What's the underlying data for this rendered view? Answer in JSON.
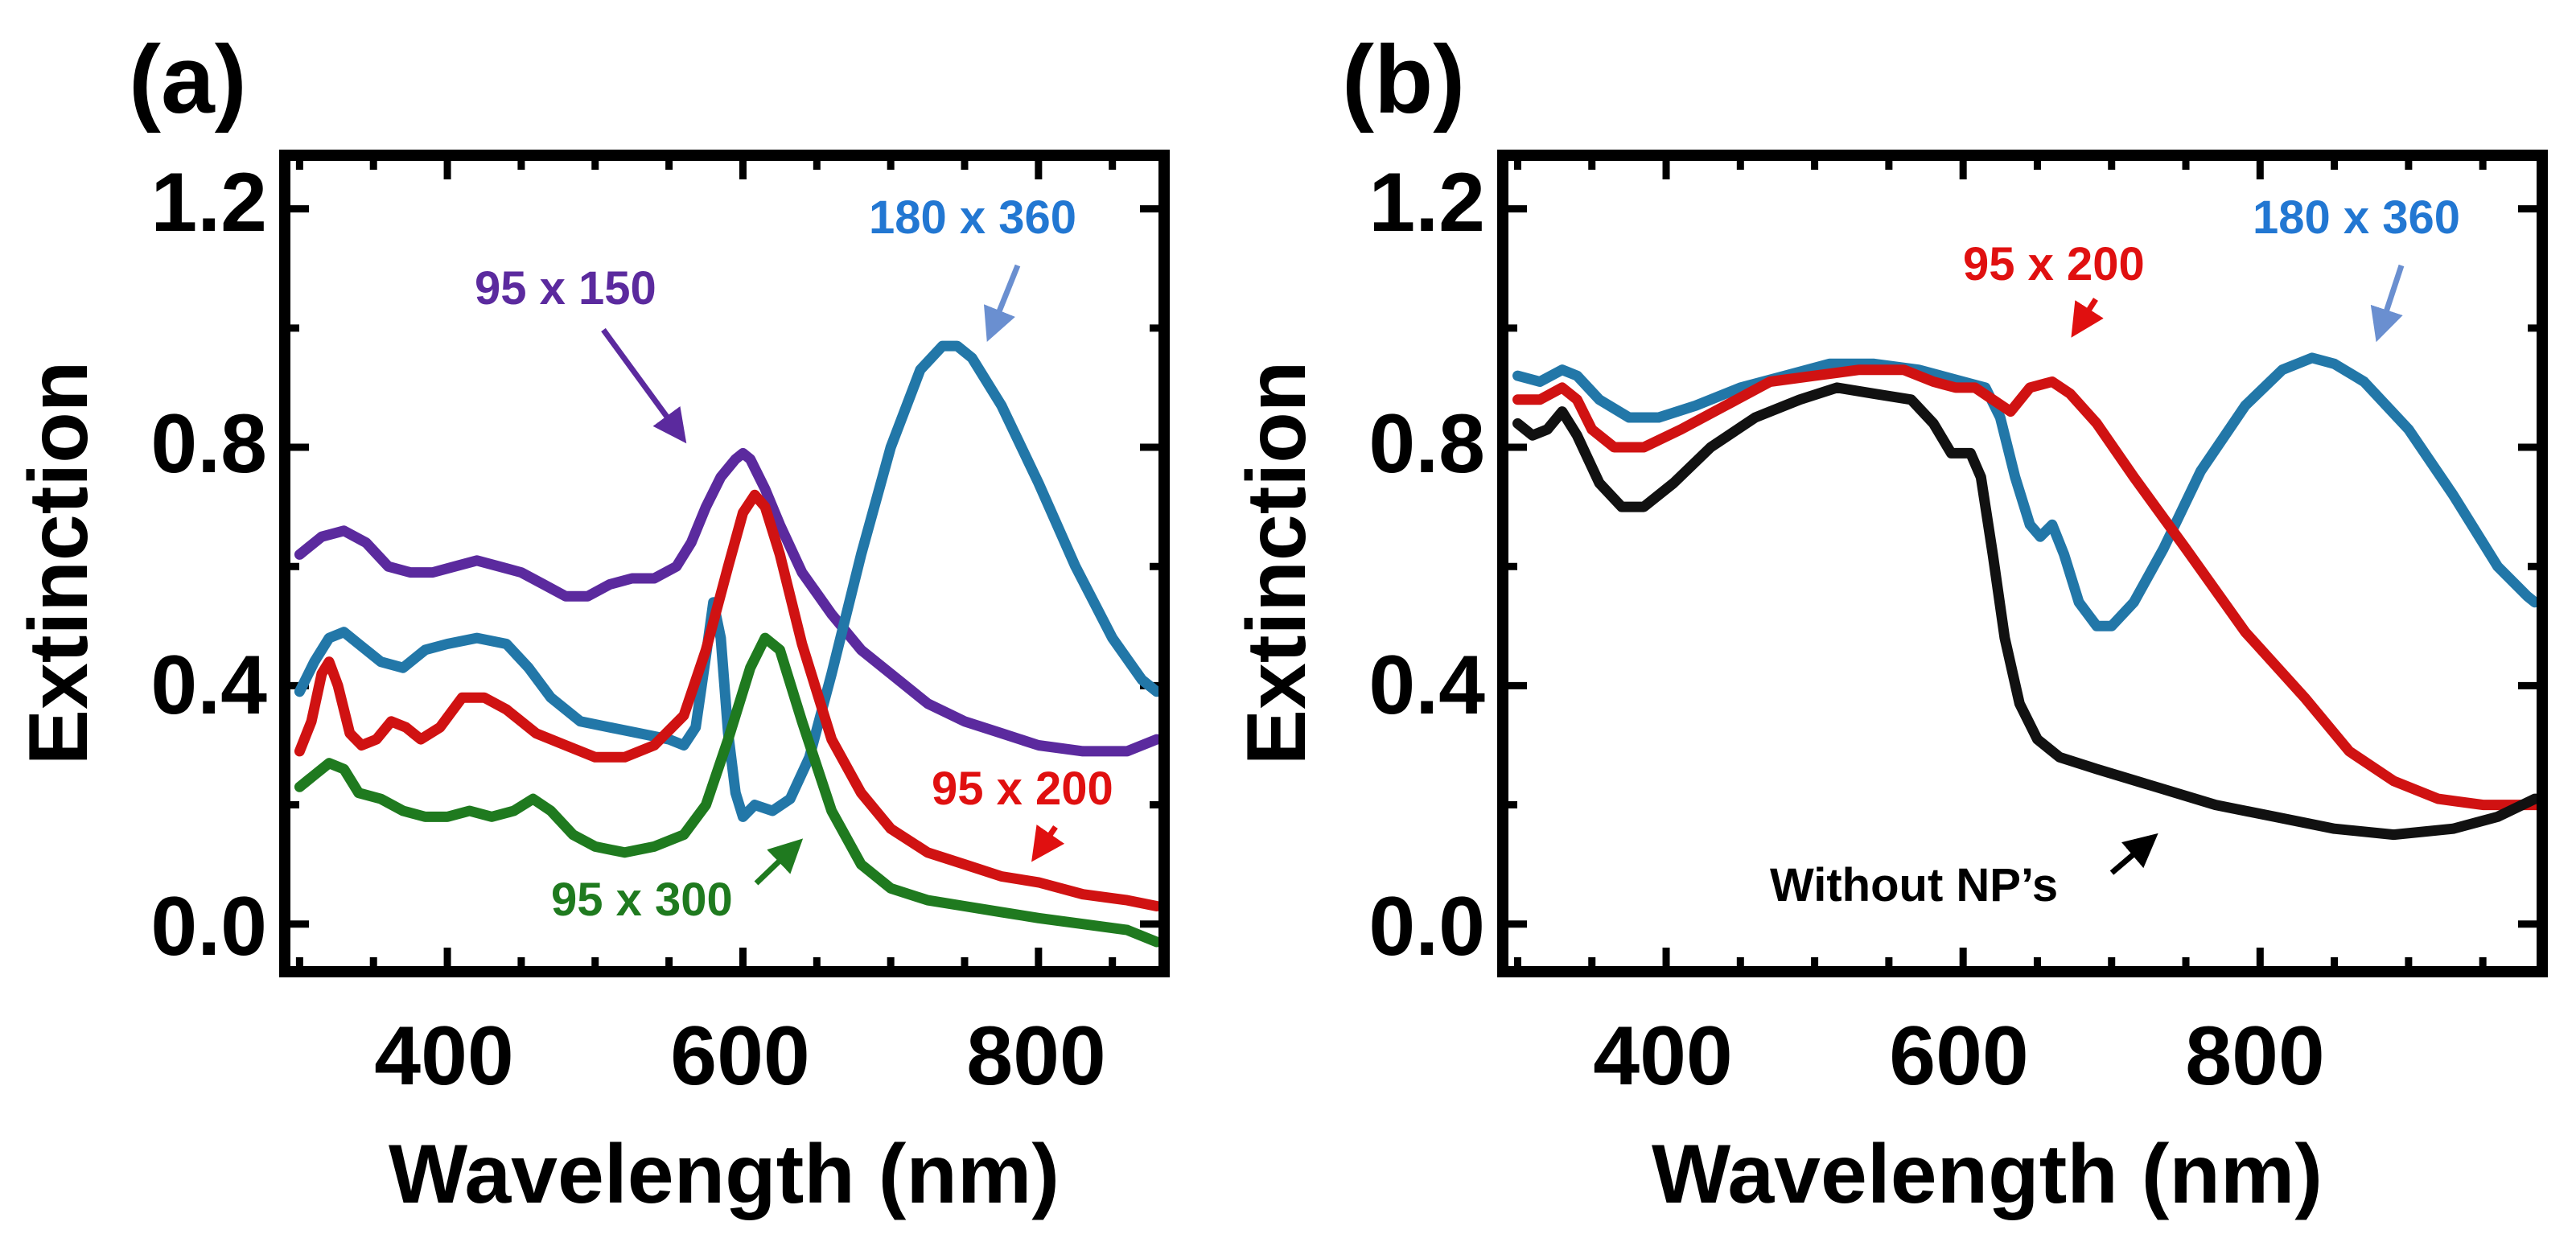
{
  "chart_data": [
    {
      "type": "line",
      "panel_label": "(a)",
      "xlabel": "Wavelength (nm)",
      "ylabel": "Extinction",
      "xlim": [
        290,
        885
      ],
      "ylim": [
        -0.08,
        1.29
      ],
      "xticks": [
        400,
        600,
        800
      ],
      "xtick_labels": [
        "400",
        "600",
        "800"
      ],
      "yticks": [
        0.0,
        0.4,
        0.8,
        1.2
      ],
      "ytick_labels": [
        "0.0",
        "0.4",
        "0.8",
        "1.2"
      ],
      "series": [
        {
          "name": "95 x 150",
          "color": "#5b2a9e",
          "points": [
            [
              300,
              0.62
            ],
            [
              315,
              0.65
            ],
            [
              330,
              0.66
            ],
            [
              345,
              0.64
            ],
            [
              360,
              0.6
            ],
            [
              375,
              0.59
            ],
            [
              390,
              0.59
            ],
            [
              405,
              0.6
            ],
            [
              420,
              0.61
            ],
            [
              435,
              0.6
            ],
            [
              450,
              0.59
            ],
            [
              465,
              0.57
            ],
            [
              480,
              0.55
            ],
            [
              495,
              0.55
            ],
            [
              510,
              0.57
            ],
            [
              525,
              0.58
            ],
            [
              540,
              0.58
            ],
            [
              555,
              0.6
            ],
            [
              565,
              0.64
            ],
            [
              575,
              0.7
            ],
            [
              585,
              0.75
            ],
            [
              595,
              0.78
            ],
            [
              600,
              0.79
            ],
            [
              605,
              0.78
            ],
            [
              615,
              0.73
            ],
            [
              625,
              0.67
            ],
            [
              640,
              0.59
            ],
            [
              660,
              0.52
            ],
            [
              680,
              0.46
            ],
            [
              700,
              0.42
            ],
            [
              725,
              0.37
            ],
            [
              750,
              0.34
            ],
            [
              775,
              0.32
            ],
            [
              800,
              0.3
            ],
            [
              830,
              0.29
            ],
            [
              860,
              0.29
            ],
            [
              880,
              0.31
            ]
          ]
        },
        {
          "name": "180 x 360",
          "color": "#2277a8",
          "points": [
            [
              300,
              0.39
            ],
            [
              310,
              0.44
            ],
            [
              320,
              0.48
            ],
            [
              330,
              0.49
            ],
            [
              340,
              0.47
            ],
            [
              355,
              0.44
            ],
            [
              370,
              0.43
            ],
            [
              385,
              0.46
            ],
            [
              400,
              0.47
            ],
            [
              420,
              0.48
            ],
            [
              440,
              0.47
            ],
            [
              455,
              0.43
            ],
            [
              470,
              0.38
            ],
            [
              490,
              0.34
            ],
            [
              510,
              0.33
            ],
            [
              530,
              0.32
            ],
            [
              550,
              0.31
            ],
            [
              560,
              0.3
            ],
            [
              568,
              0.33
            ],
            [
              575,
              0.45
            ],
            [
              580,
              0.54
            ],
            [
              585,
              0.48
            ],
            [
              590,
              0.32
            ],
            [
              595,
              0.22
            ],
            [
              600,
              0.18
            ],
            [
              608,
              0.2
            ],
            [
              620,
              0.19
            ],
            [
              632,
              0.21
            ],
            [
              645,
              0.28
            ],
            [
              660,
              0.42
            ],
            [
              680,
              0.62
            ],
            [
              700,
              0.8
            ],
            [
              720,
              0.93
            ],
            [
              735,
              0.97
            ],
            [
              745,
              0.97
            ],
            [
              755,
              0.95
            ],
            [
              775,
              0.87
            ],
            [
              800,
              0.74
            ],
            [
              825,
              0.6
            ],
            [
              850,
              0.48
            ],
            [
              870,
              0.41
            ],
            [
              880,
              0.39
            ]
          ]
        },
        {
          "name": "95 x 200",
          "color": "#d01212",
          "points": [
            [
              300,
              0.29
            ],
            [
              308,
              0.34
            ],
            [
              315,
              0.42
            ],
            [
              320,
              0.44
            ],
            [
              326,
              0.4
            ],
            [
              334,
              0.32
            ],
            [
              342,
              0.3
            ],
            [
              352,
              0.31
            ],
            [
              362,
              0.34
            ],
            [
              372,
              0.33
            ],
            [
              382,
              0.31
            ],
            [
              395,
              0.33
            ],
            [
              410,
              0.38
            ],
            [
              425,
              0.38
            ],
            [
              440,
              0.36
            ],
            [
              460,
              0.32
            ],
            [
              480,
              0.3
            ],
            [
              500,
              0.28
            ],
            [
              520,
              0.28
            ],
            [
              540,
              0.3
            ],
            [
              560,
              0.35
            ],
            [
              575,
              0.46
            ],
            [
              590,
              0.6
            ],
            [
              600,
              0.69
            ],
            [
              608,
              0.72
            ],
            [
              615,
              0.7
            ],
            [
              625,
              0.62
            ],
            [
              640,
              0.47
            ],
            [
              660,
              0.31
            ],
            [
              680,
              0.22
            ],
            [
              700,
              0.16
            ],
            [
              725,
              0.12
            ],
            [
              750,
              0.1
            ],
            [
              775,
              0.08
            ],
            [
              800,
              0.07
            ],
            [
              830,
              0.05
            ],
            [
              860,
              0.04
            ],
            [
              880,
              0.03
            ]
          ]
        },
        {
          "name": "95 x 300",
          "color": "#1f7a1f",
          "points": [
            [
              300,
              0.23
            ],
            [
              310,
              0.25
            ],
            [
              320,
              0.27
            ],
            [
              330,
              0.26
            ],
            [
              340,
              0.22
            ],
            [
              355,
              0.21
            ],
            [
              370,
              0.19
            ],
            [
              385,
              0.18
            ],
            [
              400,
              0.18
            ],
            [
              415,
              0.19
            ],
            [
              430,
              0.18
            ],
            [
              445,
              0.19
            ],
            [
              458,
              0.21
            ],
            [
              470,
              0.19
            ],
            [
              485,
              0.15
            ],
            [
              500,
              0.13
            ],
            [
              520,
              0.12
            ],
            [
              540,
              0.13
            ],
            [
              560,
              0.15
            ],
            [
              575,
              0.2
            ],
            [
              590,
              0.31
            ],
            [
              605,
              0.43
            ],
            [
              615,
              0.48
            ],
            [
              625,
              0.46
            ],
            [
              640,
              0.34
            ],
            [
              660,
              0.19
            ],
            [
              680,
              0.1
            ],
            [
              700,
              0.06
            ],
            [
              725,
              0.04
            ],
            [
              750,
              0.03
            ],
            [
              775,
              0.02
            ],
            [
              800,
              0.01
            ],
            [
              830,
              0.0
            ],
            [
              860,
              -0.01
            ],
            [
              880,
              -0.03
            ]
          ]
        }
      ],
      "annotations": [
        {
          "text": "95 x 150",
          "color": "#5b2a9e"
        },
        {
          "text": "180 x 360",
          "color": "#2277d2"
        },
        {
          "text": "95 x 200",
          "color": "#e01010"
        },
        {
          "text": "95 x 300",
          "color": "#1f7a1f"
        }
      ]
    },
    {
      "type": "line",
      "panel_label": "(b)",
      "xlabel": "Wavelength (nm)",
      "ylabel": "Extinction",
      "xlim": [
        290,
        990
      ],
      "ylim": [
        -0.08,
        1.29
      ],
      "xticks": [
        400,
        600,
        800
      ],
      "xtick_labels": [
        "400",
        "600",
        "800"
      ],
      "yticks": [
        0.0,
        0.4,
        0.8,
        1.2
      ],
      "ytick_labels": [
        "0.0",
        "0.4",
        "0.8",
        "1.2"
      ],
      "series": [
        {
          "name": "180 x 360",
          "color": "#2277a8",
          "points": [
            [
              300,
              0.92
            ],
            [
              315,
              0.91
            ],
            [
              330,
              0.93
            ],
            [
              340,
              0.92
            ],
            [
              355,
              0.88
            ],
            [
              375,
              0.85
            ],
            [
              395,
              0.85
            ],
            [
              420,
              0.87
            ],
            [
              450,
              0.9
            ],
            [
              480,
              0.92
            ],
            [
              510,
              0.94
            ],
            [
              540,
              0.94
            ],
            [
              570,
              0.93
            ],
            [
              600,
              0.91
            ],
            [
              615,
              0.9
            ],
            [
              625,
              0.85
            ],
            [
              635,
              0.75
            ],
            [
              645,
              0.67
            ],
            [
              652,
              0.65
            ],
            [
              660,
              0.67
            ],
            [
              668,
              0.62
            ],
            [
              678,
              0.54
            ],
            [
              690,
              0.5
            ],
            [
              700,
              0.5
            ],
            [
              715,
              0.54
            ],
            [
              735,
              0.63
            ],
            [
              760,
              0.76
            ],
            [
              790,
              0.87
            ],
            [
              815,
              0.93
            ],
            [
              835,
              0.95
            ],
            [
              850,
              0.94
            ],
            [
              870,
              0.91
            ],
            [
              900,
              0.83
            ],
            [
              930,
              0.72
            ],
            [
              960,
              0.6
            ],
            [
              980,
              0.55
            ],
            [
              985,
              0.54
            ]
          ]
        },
        {
          "name": "95 x 200",
          "color": "#d01212",
          "points": [
            [
              300,
              0.88
            ],
            [
              315,
              0.88
            ],
            [
              330,
              0.9
            ],
            [
              340,
              0.88
            ],
            [
              350,
              0.83
            ],
            [
              365,
              0.8
            ],
            [
              385,
              0.8
            ],
            [
              410,
              0.83
            ],
            [
              440,
              0.87
            ],
            [
              470,
              0.91
            ],
            [
              500,
              0.92
            ],
            [
              530,
              0.93
            ],
            [
              560,
              0.93
            ],
            [
              580,
              0.91
            ],
            [
              595,
              0.9
            ],
            [
              608,
              0.9
            ],
            [
              620,
              0.88
            ],
            [
              632,
              0.86
            ],
            [
              645,
              0.9
            ],
            [
              660,
              0.91
            ],
            [
              672,
              0.89
            ],
            [
              690,
              0.84
            ],
            [
              715,
              0.75
            ],
            [
              750,
              0.63
            ],
            [
              790,
              0.49
            ],
            [
              830,
              0.38
            ],
            [
              860,
              0.29
            ],
            [
              890,
              0.24
            ],
            [
              920,
              0.21
            ],
            [
              950,
              0.2
            ],
            [
              980,
              0.2
            ],
            [
              990,
              0.2
            ]
          ]
        },
        {
          "name": "Without NP's",
          "color": "#111111",
          "points": [
            [
              300,
              0.84
            ],
            [
              310,
              0.82
            ],
            [
              320,
              0.83
            ],
            [
              330,
              0.86
            ],
            [
              340,
              0.82
            ],
            [
              355,
              0.74
            ],
            [
              370,
              0.7
            ],
            [
              385,
              0.7
            ],
            [
              405,
              0.74
            ],
            [
              430,
              0.8
            ],
            [
              460,
              0.85
            ],
            [
              490,
              0.88
            ],
            [
              515,
              0.9
            ],
            [
              540,
              0.89
            ],
            [
              565,
              0.88
            ],
            [
              580,
              0.84
            ],
            [
              592,
              0.79
            ],
            [
              605,
              0.79
            ],
            [
              612,
              0.75
            ],
            [
              620,
              0.62
            ],
            [
              628,
              0.48
            ],
            [
              638,
              0.37
            ],
            [
              650,
              0.31
            ],
            [
              665,
              0.28
            ],
            [
              690,
              0.26
            ],
            [
              730,
              0.23
            ],
            [
              770,
              0.2
            ],
            [
              810,
              0.18
            ],
            [
              850,
              0.16
            ],
            [
              890,
              0.15
            ],
            [
              930,
              0.16
            ],
            [
              960,
              0.18
            ],
            [
              985,
              0.21
            ],
            [
              990,
              0.21
            ]
          ]
        }
      ],
      "annotations": [
        {
          "text": "95 x 200",
          "color": "#e01010"
        },
        {
          "text": "180 x 360",
          "color": "#2277d2"
        },
        {
          "text": "Without NP’s",
          "color": "#000000"
        }
      ]
    }
  ]
}
